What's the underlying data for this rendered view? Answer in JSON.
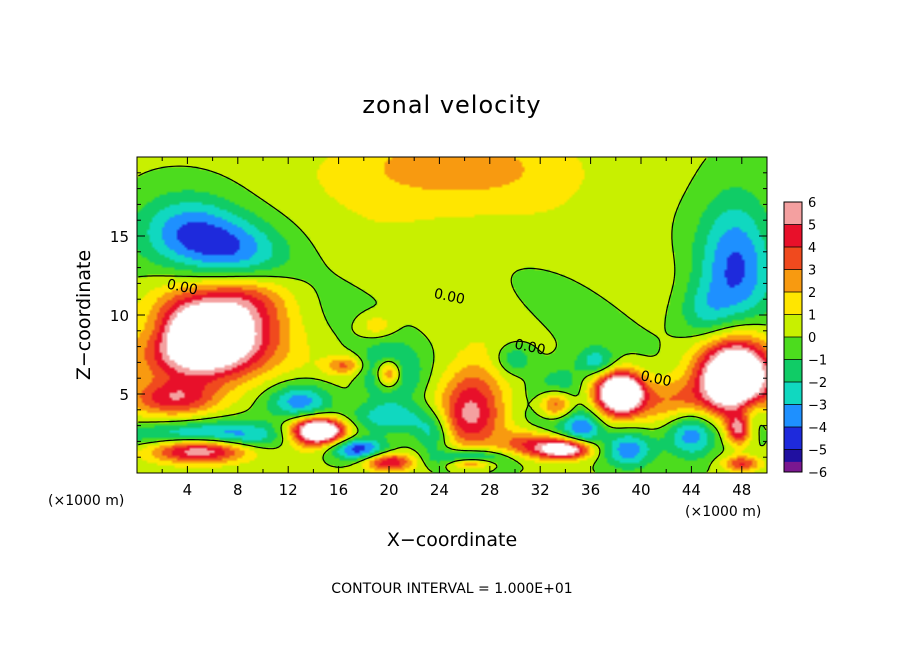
{
  "chart_data": {
    "type": "heatmap",
    "title": "zonal velocity",
    "xlabel": "X−coordinate",
    "ylabel": "Z−coordinate",
    "x_unit_left": "(×1000 m)",
    "x_unit_right": "(×1000 m)",
    "footer": "CONTOUR INTERVAL = 1.000E+01",
    "xlim": [
      0,
      50
    ],
    "ylim": [
      0,
      20
    ],
    "x_ticks": [
      "4",
      "8",
      "12",
      "16",
      "20",
      "24",
      "28",
      "32",
      "36",
      "40",
      "44",
      "48"
    ],
    "x_tick_values": [
      4,
      8,
      12,
      16,
      20,
      24,
      28,
      32,
      36,
      40,
      44,
      48
    ],
    "y_ticks": [
      "5",
      "10",
      "15"
    ],
    "y_tick_values": [
      5,
      10,
      15
    ],
    "colorbar": {
      "min": -6,
      "max": 6,
      "tick_labels": [
        "6",
        "5",
        "4",
        "3",
        "2",
        "1",
        "0",
        "−1",
        "−2",
        "−3",
        "−4",
        "−5",
        "−6"
      ],
      "tick_values": [
        6,
        5,
        4,
        3,
        2,
        1,
        0,
        -1,
        -2,
        -3,
        -4,
        -5,
        -6
      ],
      "colors": [
        "#f4a0a0",
        "#e8102a",
        "#f04a1e",
        "#f89a10",
        "#ffe600",
        "#c8f000",
        "#4cdc1e",
        "#10cc66",
        "#10d8c0",
        "#1e90ff",
        "#1e2adc",
        "#2010a0",
        "#7a1890"
      ]
    },
    "contour_labels": [
      {
        "text": "0.00",
        "x": 3.6,
        "z": 11.8
      },
      {
        "text": "0.00",
        "x": 24.8,
        "z": 11.2
      },
      {
        "text": "0.00",
        "x": 31.2,
        "z": 8.0
      },
      {
        "text": "0.00",
        "x": 41.2,
        "z": 6.0
      }
    ],
    "features": [
      {
        "value": 2,
        "x": 25,
        "z": 19.5,
        "rx": 9,
        "rz": 2.2
      },
      {
        "value": 0.8,
        "x": 25,
        "z": 17,
        "rx": 14,
        "rz": 4
      },
      {
        "value": -4,
        "x": 4,
        "z": 15.2,
        "rx": 4.2,
        "rz": 2.4
      },
      {
        "value": -3,
        "x": 8,
        "z": 14,
        "rx": 4,
        "rz": 2
      },
      {
        "value": -4,
        "x": 47.5,
        "z": 13.2,
        "rx": 3,
        "rz": 4.5
      },
      {
        "value": -2.5,
        "x": 45,
        "z": 10,
        "rx": 2.5,
        "rz": 2
      },
      {
        "value": 2,
        "x": 9,
        "z": 11.2,
        "rx": 3.5,
        "rz": 1.5
      },
      {
        "value": 5,
        "x": 5.5,
        "z": 9.2,
        "rx": 5,
        "rz": 2.4
      },
      {
        "value": 7,
        "x": 5,
        "z": 8.0,
        "rx": 4.6,
        "rz": 2.4
      },
      {
        "value": -2,
        "x": 1.5,
        "z": 9,
        "rx": 2,
        "rz": 1.5
      },
      {
        "value": 4,
        "x": 3,
        "z": 4.7,
        "rx": 3.5,
        "rz": 1.1
      },
      {
        "value": -4.5,
        "x": 6,
        "z": 2.3,
        "rx": 7,
        "rz": 0.9
      },
      {
        "value": 7,
        "x": 5,
        "z": 1.5,
        "rx": 4,
        "rz": 0.8
      },
      {
        "value": -4,
        "x": 13,
        "z": 4.5,
        "rx": 2.5,
        "rz": 1.2
      },
      {
        "value": 5,
        "x": 14,
        "z": 2.5,
        "rx": 2.6,
        "rz": 1.1
      },
      {
        "value": 7,
        "x": 14.5,
        "z": 2.7,
        "rx": 1.8,
        "rz": 0.7
      },
      {
        "value": -4.5,
        "x": 20,
        "z": 6.3,
        "rx": 2,
        "rz": 1.6
      },
      {
        "value": 7,
        "x": 20,
        "z": 6.3,
        "rx": 1.1,
        "rz": 1.0
      },
      {
        "value": 3,
        "x": 16.5,
        "z": 6.8,
        "rx": 1.5,
        "rz": 0.6
      },
      {
        "value": 2,
        "x": 19,
        "z": 9.3,
        "rx": 1.5,
        "rz": 0.8
      },
      {
        "value": -3,
        "x": 20,
        "z": 3.5,
        "rx": 3.5,
        "rz": 1.0
      },
      {
        "value": -5,
        "x": 17.5,
        "z": 1.5,
        "rx": 2.3,
        "rz": 0.7
      },
      {
        "value": 5,
        "x": 20,
        "z": 0.7,
        "rx": 2,
        "rz": 0.6
      },
      {
        "value": 4.5,
        "x": 26.5,
        "z": 4.5,
        "rx": 2.6,
        "rz": 2.4
      },
      {
        "value": 2,
        "x": 26,
        "z": 3,
        "rx": 3,
        "rz": 1.5
      },
      {
        "value": -3,
        "x": 23.5,
        "z": 2.5,
        "rx": 1.5,
        "rz": 1.2
      },
      {
        "value": -5,
        "x": 26.5,
        "z": 0.8,
        "rx": 3,
        "rz": 0.6
      },
      {
        "value": 6,
        "x": 26.5,
        "z": 0.6,
        "rx": 2,
        "rz": 0.4
      },
      {
        "value": -4.5,
        "x": 33.5,
        "z": 4.4,
        "rx": 2.2,
        "rz": 2.0
      },
      {
        "value": 7,
        "x": 33.3,
        "z": 4.3,
        "rx": 1.5,
        "rz": 1.0
      },
      {
        "value": 4,
        "x": 31.5,
        "z": 1.8,
        "rx": 2.8,
        "rz": 0.9
      },
      {
        "value": 7,
        "x": 34,
        "z": 1.5,
        "rx": 2,
        "rz": 0.6
      },
      {
        "value": 5,
        "x": 38,
        "z": 5.2,
        "rx": 2.3,
        "rz": 1.6
      },
      {
        "value": 7,
        "x": 38.5,
        "z": 5.0,
        "rx": 1.5,
        "rz": 1.1
      },
      {
        "value": -4,
        "x": 39,
        "z": 1.5,
        "rx": 2,
        "rz": 1.2
      },
      {
        "value": -3.5,
        "x": 35.5,
        "z": 2.8,
        "rx": 1.5,
        "rz": 1.0
      },
      {
        "value": -2.5,
        "x": 30,
        "z": 7.2,
        "rx": 1.5,
        "rz": 1.0
      },
      {
        "value": -3,
        "x": 36.5,
        "z": 7.0,
        "rx": 1.5,
        "rz": 0.9
      },
      {
        "value": 3,
        "x": 42.5,
        "z": 4.5,
        "rx": 3,
        "rz": 1.5
      },
      {
        "value": -4,
        "x": 44,
        "z": 2.5,
        "rx": 2,
        "rz": 1.5
      },
      {
        "value": 5,
        "x": 47.3,
        "z": 6.5,
        "rx": 3.2,
        "rz": 2.8
      },
      {
        "value": 7,
        "x": 47.5,
        "z": 5.8,
        "rx": 2.5,
        "rz": 2.0
      },
      {
        "value": -3,
        "x": 48.5,
        "z": 3.6,
        "rx": 1.5,
        "rz": 1.5
      },
      {
        "value": 6,
        "x": 47.8,
        "z": 2.8,
        "rx": 1.0,
        "rz": 1.0
      },
      {
        "value": 4,
        "x": 48,
        "z": 0.6,
        "rx": 1.5,
        "rz": 0.5
      }
    ]
  }
}
